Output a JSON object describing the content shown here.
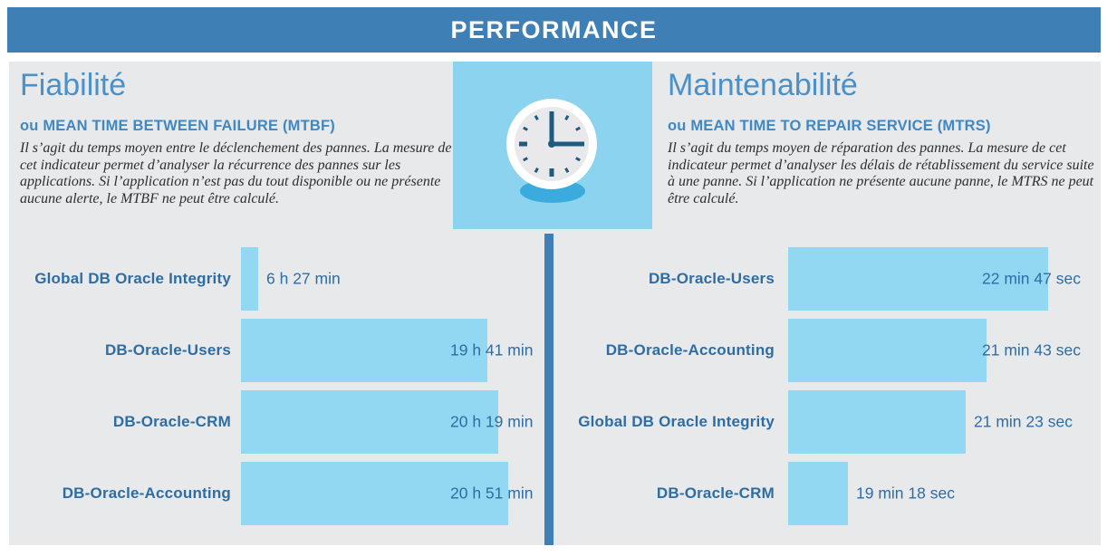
{
  "header": {
    "title": "PERFORMANCE"
  },
  "colors": {
    "header_blue": "#3e80b6",
    "divider_blue": "#3e80b6",
    "panel_background": "#e8e9ea",
    "bar_fill": "#92d8f2",
    "clock_box_fill": "#8bd3ee",
    "clock_hands": "#1e5b7e",
    "clock_shadow": "#3aabdc",
    "title_text": "#4a90c9",
    "subtitle_text": "#3f88c3",
    "chart_text": "#2e6da4",
    "body_text": "#2e2e2e"
  },
  "center_icon": {
    "name": "clock",
    "time_shown": "3:00"
  },
  "panels": {
    "left": {
      "title": "Fiabilité",
      "subtitle": "ou MEAN TIME BETWEEN FAILURE (MTBF)",
      "description": "Il s’agit du temps moyen entre le déclenchement des pannes. La mesure de cet indicateur permet d’analyser la récurrence des pannes sur les applications. Si l’application n’est pas du tout disponible ou ne présente aucune alerte, le MTBF ne peut être calculé."
    },
    "right": {
      "title": "Maintenabilité",
      "subtitle": "ou MEAN TIME TO REPAIR SERVICE (MTRS)",
      "description": "Il s’agit du temps moyen de réparation des pannes. La mesure de cet indicateur permet d’analyser les délais de rétablissement du service suite à une panne. Si l’application ne présente aucune panne, le MTRS ne peut être calculé."
    }
  },
  "chart_data": [
    {
      "type": "bar",
      "orientation": "horizontal",
      "title": "Fiabilité (MTBF)",
      "categories": [
        "Global DB Oracle Integrity",
        "DB-Oracle-Users",
        "DB-Oracle-CRM",
        "DB-Oracle-Accounting"
      ],
      "values": [
        "6 h 27 min",
        "19 h 41 min",
        "20 h 19 min",
        "20 h 51 min"
      ],
      "values_minutes": [
        387,
        1181,
        1219,
        1251
      ],
      "bar_width_pct": [
        5.9,
        84.0,
        87.7,
        91.0
      ],
      "unit": "h min",
      "axis": "none",
      "grid": false,
      "legend": "none"
    },
    {
      "type": "bar",
      "orientation": "horizontal",
      "title": "Maintenabilité (MTRS)",
      "categories": [
        "DB-Oracle-Users",
        "DB-Oracle-Accounting",
        "Global DB Oracle Integrity",
        "DB-Oracle-CRM"
      ],
      "values": [
        "22 min 47 sec",
        "21 min 43 sec",
        "21 min 23 sec",
        "19 min 18 sec"
      ],
      "values_seconds": [
        1367,
        1303,
        1283,
        1158
      ],
      "bar_width_pct": [
        88.3,
        67.4,
        60.3,
        20.3
      ],
      "unit": "min sec",
      "axis": "none",
      "grid": false,
      "legend": "none"
    }
  ]
}
